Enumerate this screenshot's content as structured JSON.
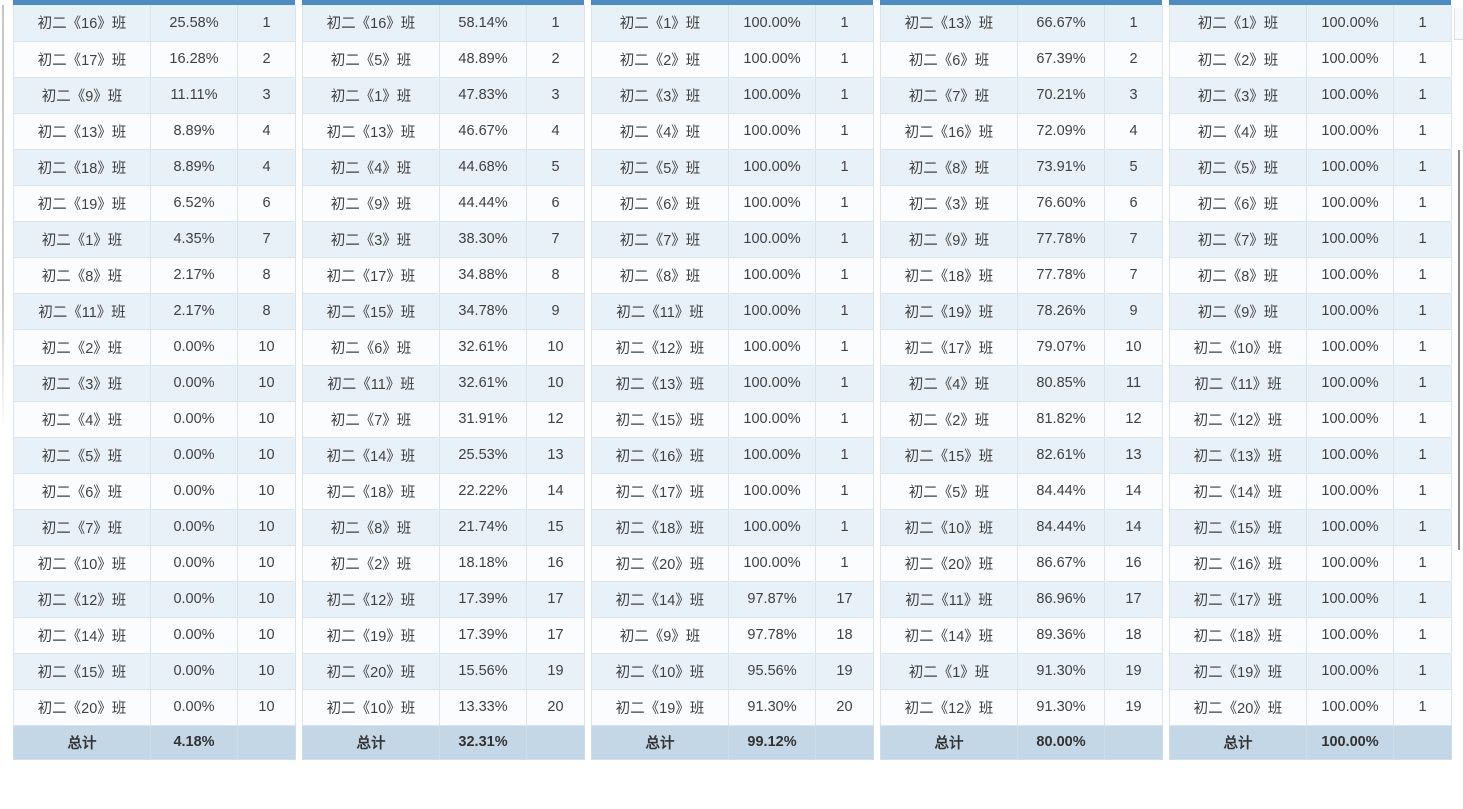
{
  "labels": {
    "total": "总计"
  },
  "colors": {
    "accent": "#4c8cc1",
    "row_odd_bg": "#e8f0f8",
    "row_even_bg": "#fafcfe",
    "cell_border": "#dce4eb",
    "footer_bg": "#c4d7e7",
    "text": "#404040"
  },
  "tables": [
    {
      "total_percent": "4.18%",
      "rows": [
        {
          "class": "初二《16》班",
          "percent": "25.58%",
          "rank": "1"
        },
        {
          "class": "初二《17》班",
          "percent": "16.28%",
          "rank": "2"
        },
        {
          "class": "初二《9》班",
          "percent": "11.11%",
          "rank": "3"
        },
        {
          "class": "初二《13》班",
          "percent": "8.89%",
          "rank": "4"
        },
        {
          "class": "初二《18》班",
          "percent": "8.89%",
          "rank": "4"
        },
        {
          "class": "初二《19》班",
          "percent": "6.52%",
          "rank": "6"
        },
        {
          "class": "初二《1》班",
          "percent": "4.35%",
          "rank": "7"
        },
        {
          "class": "初二《8》班",
          "percent": "2.17%",
          "rank": "8"
        },
        {
          "class": "初二《11》班",
          "percent": "2.17%",
          "rank": "8"
        },
        {
          "class": "初二《2》班",
          "percent": "0.00%",
          "rank": "10"
        },
        {
          "class": "初二《3》班",
          "percent": "0.00%",
          "rank": "10"
        },
        {
          "class": "初二《4》班",
          "percent": "0.00%",
          "rank": "10"
        },
        {
          "class": "初二《5》班",
          "percent": "0.00%",
          "rank": "10"
        },
        {
          "class": "初二《6》班",
          "percent": "0.00%",
          "rank": "10"
        },
        {
          "class": "初二《7》班",
          "percent": "0.00%",
          "rank": "10"
        },
        {
          "class": "初二《10》班",
          "percent": "0.00%",
          "rank": "10"
        },
        {
          "class": "初二《12》班",
          "percent": "0.00%",
          "rank": "10"
        },
        {
          "class": "初二《14》班",
          "percent": "0.00%",
          "rank": "10"
        },
        {
          "class": "初二《15》班",
          "percent": "0.00%",
          "rank": "10"
        },
        {
          "class": "初二《20》班",
          "percent": "0.00%",
          "rank": "10"
        }
      ]
    },
    {
      "total_percent": "32.31%",
      "rows": [
        {
          "class": "初二《16》班",
          "percent": "58.14%",
          "rank": "1"
        },
        {
          "class": "初二《5》班",
          "percent": "48.89%",
          "rank": "2"
        },
        {
          "class": "初二《1》班",
          "percent": "47.83%",
          "rank": "3"
        },
        {
          "class": "初二《13》班",
          "percent": "46.67%",
          "rank": "4"
        },
        {
          "class": "初二《4》班",
          "percent": "44.68%",
          "rank": "5"
        },
        {
          "class": "初二《9》班",
          "percent": "44.44%",
          "rank": "6"
        },
        {
          "class": "初二《3》班",
          "percent": "38.30%",
          "rank": "7"
        },
        {
          "class": "初二《17》班",
          "percent": "34.88%",
          "rank": "8"
        },
        {
          "class": "初二《15》班",
          "percent": "34.78%",
          "rank": "9"
        },
        {
          "class": "初二《6》班",
          "percent": "32.61%",
          "rank": "10"
        },
        {
          "class": "初二《11》班",
          "percent": "32.61%",
          "rank": "10"
        },
        {
          "class": "初二《7》班",
          "percent": "31.91%",
          "rank": "12"
        },
        {
          "class": "初二《14》班",
          "percent": "25.53%",
          "rank": "13"
        },
        {
          "class": "初二《18》班",
          "percent": "22.22%",
          "rank": "14"
        },
        {
          "class": "初二《8》班",
          "percent": "21.74%",
          "rank": "15"
        },
        {
          "class": "初二《2》班",
          "percent": "18.18%",
          "rank": "16"
        },
        {
          "class": "初二《12》班",
          "percent": "17.39%",
          "rank": "17"
        },
        {
          "class": "初二《19》班",
          "percent": "17.39%",
          "rank": "17"
        },
        {
          "class": "初二《20》班",
          "percent": "15.56%",
          "rank": "19"
        },
        {
          "class": "初二《10》班",
          "percent": "13.33%",
          "rank": "20"
        }
      ]
    },
    {
      "total_percent": "99.12%",
      "rows": [
        {
          "class": "初二《1》班",
          "percent": "100.00%",
          "rank": "1"
        },
        {
          "class": "初二《2》班",
          "percent": "100.00%",
          "rank": "1"
        },
        {
          "class": "初二《3》班",
          "percent": "100.00%",
          "rank": "1"
        },
        {
          "class": "初二《4》班",
          "percent": "100.00%",
          "rank": "1"
        },
        {
          "class": "初二《5》班",
          "percent": "100.00%",
          "rank": "1"
        },
        {
          "class": "初二《6》班",
          "percent": "100.00%",
          "rank": "1"
        },
        {
          "class": "初二《7》班",
          "percent": "100.00%",
          "rank": "1"
        },
        {
          "class": "初二《8》班",
          "percent": "100.00%",
          "rank": "1"
        },
        {
          "class": "初二《11》班",
          "percent": "100.00%",
          "rank": "1"
        },
        {
          "class": "初二《12》班",
          "percent": "100.00%",
          "rank": "1"
        },
        {
          "class": "初二《13》班",
          "percent": "100.00%",
          "rank": "1"
        },
        {
          "class": "初二《15》班",
          "percent": "100.00%",
          "rank": "1"
        },
        {
          "class": "初二《16》班",
          "percent": "100.00%",
          "rank": "1"
        },
        {
          "class": "初二《17》班",
          "percent": "100.00%",
          "rank": "1"
        },
        {
          "class": "初二《18》班",
          "percent": "100.00%",
          "rank": "1"
        },
        {
          "class": "初二《20》班",
          "percent": "100.00%",
          "rank": "1"
        },
        {
          "class": "初二《14》班",
          "percent": "97.87%",
          "rank": "17"
        },
        {
          "class": "初二《9》班",
          "percent": "97.78%",
          "rank": "18"
        },
        {
          "class": "初二《10》班",
          "percent": "95.56%",
          "rank": "19"
        },
        {
          "class": "初二《19》班",
          "percent": "91.30%",
          "rank": "20"
        }
      ]
    },
    {
      "total_percent": "80.00%",
      "rows": [
        {
          "class": "初二《13》班",
          "percent": "66.67%",
          "rank": "1"
        },
        {
          "class": "初二《6》班",
          "percent": "67.39%",
          "rank": "2"
        },
        {
          "class": "初二《7》班",
          "percent": "70.21%",
          "rank": "3"
        },
        {
          "class": "初二《16》班",
          "percent": "72.09%",
          "rank": "4"
        },
        {
          "class": "初二《8》班",
          "percent": "73.91%",
          "rank": "5"
        },
        {
          "class": "初二《3》班",
          "percent": "76.60%",
          "rank": "6"
        },
        {
          "class": "初二《9》班",
          "percent": "77.78%",
          "rank": "7"
        },
        {
          "class": "初二《18》班",
          "percent": "77.78%",
          "rank": "7"
        },
        {
          "class": "初二《19》班",
          "percent": "78.26%",
          "rank": "9"
        },
        {
          "class": "初二《17》班",
          "percent": "79.07%",
          "rank": "10"
        },
        {
          "class": "初二《4》班",
          "percent": "80.85%",
          "rank": "11"
        },
        {
          "class": "初二《2》班",
          "percent": "81.82%",
          "rank": "12"
        },
        {
          "class": "初二《15》班",
          "percent": "82.61%",
          "rank": "13"
        },
        {
          "class": "初二《5》班",
          "percent": "84.44%",
          "rank": "14"
        },
        {
          "class": "初二《10》班",
          "percent": "84.44%",
          "rank": "14"
        },
        {
          "class": "初二《20》班",
          "percent": "86.67%",
          "rank": "16"
        },
        {
          "class": "初二《11》班",
          "percent": "86.96%",
          "rank": "17"
        },
        {
          "class": "初二《14》班",
          "percent": "89.36%",
          "rank": "18"
        },
        {
          "class": "初二《1》班",
          "percent": "91.30%",
          "rank": "19"
        },
        {
          "class": "初二《12》班",
          "percent": "91.30%",
          "rank": "19"
        }
      ]
    },
    {
      "total_percent": "100.00%",
      "rows": [
        {
          "class": "初二《1》班",
          "percent": "100.00%",
          "rank": "1"
        },
        {
          "class": "初二《2》班",
          "percent": "100.00%",
          "rank": "1"
        },
        {
          "class": "初二《3》班",
          "percent": "100.00%",
          "rank": "1"
        },
        {
          "class": "初二《4》班",
          "percent": "100.00%",
          "rank": "1"
        },
        {
          "class": "初二《5》班",
          "percent": "100.00%",
          "rank": "1"
        },
        {
          "class": "初二《6》班",
          "percent": "100.00%",
          "rank": "1"
        },
        {
          "class": "初二《7》班",
          "percent": "100.00%",
          "rank": "1"
        },
        {
          "class": "初二《8》班",
          "percent": "100.00%",
          "rank": "1"
        },
        {
          "class": "初二《9》班",
          "percent": "100.00%",
          "rank": "1"
        },
        {
          "class": "初二《10》班",
          "percent": "100.00%",
          "rank": "1"
        },
        {
          "class": "初二《11》班",
          "percent": "100.00%",
          "rank": "1"
        },
        {
          "class": "初二《12》班",
          "percent": "100.00%",
          "rank": "1"
        },
        {
          "class": "初二《13》班",
          "percent": "100.00%",
          "rank": "1"
        },
        {
          "class": "初二《14》班",
          "percent": "100.00%",
          "rank": "1"
        },
        {
          "class": "初二《15》班",
          "percent": "100.00%",
          "rank": "1"
        },
        {
          "class": "初二《16》班",
          "percent": "100.00%",
          "rank": "1"
        },
        {
          "class": "初二《17》班",
          "percent": "100.00%",
          "rank": "1"
        },
        {
          "class": "初二《18》班",
          "percent": "100.00%",
          "rank": "1"
        },
        {
          "class": "初二《19》班",
          "percent": "100.00%",
          "rank": "1"
        },
        {
          "class": "初二《20》班",
          "percent": "100.00%",
          "rank": "1"
        }
      ]
    }
  ]
}
